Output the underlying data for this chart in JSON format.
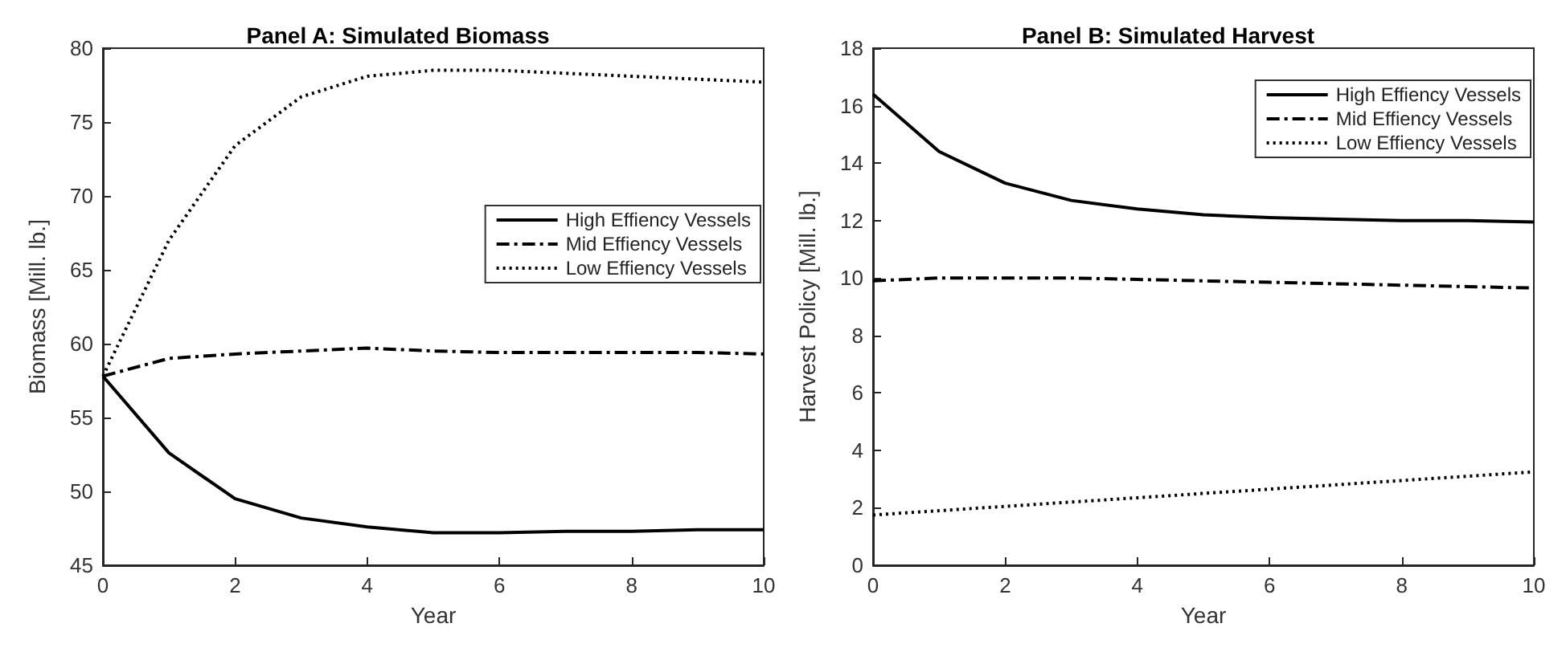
{
  "chart_data": [
    {
      "type": "line",
      "title": "Panel A: Simulated Biomass",
      "xlabel": "Year",
      "ylabel": "Biomass [Mill. lb.]",
      "x": [
        0,
        1,
        2,
        3,
        4,
        5,
        6,
        7,
        8,
        9,
        10
      ],
      "xlim": [
        0,
        10
      ],
      "xticks": [
        0,
        2,
        4,
        6,
        8,
        10
      ],
      "ylim": [
        45,
        80
      ],
      "yticks": [
        45,
        50,
        55,
        60,
        65,
        70,
        75,
        80
      ],
      "grid": false,
      "legend": "right",
      "marker": "none",
      "series": [
        {
          "name": "High Effiency Vessels",
          "color": "#000000",
          "line_style": "solid",
          "values": [
            57.8,
            52.6,
            49.5,
            48.2,
            47.6,
            47.2,
            47.2,
            47.3,
            47.3,
            47.4,
            47.4
          ]
        },
        {
          "name": "Mid Effiency Vessels",
          "color": "#000000",
          "line_style": "dashed",
          "values": [
            57.8,
            59.0,
            59.3,
            59.5,
            59.7,
            59.5,
            59.4,
            59.4,
            59.4,
            59.4,
            59.3
          ]
        },
        {
          "name": "Low Effiency Vessels",
          "color": "#000000",
          "line_style": "dotted",
          "values": [
            57.8,
            67.0,
            73.4,
            76.7,
            78.1,
            78.5,
            78.5,
            78.3,
            78.1,
            77.9,
            77.7
          ]
        }
      ]
    },
    {
      "type": "line",
      "title": "Panel B: Simulated Harvest",
      "xlabel": "Year",
      "ylabel": "Harvest Policy [Mill. lb.]",
      "x": [
        0,
        1,
        2,
        3,
        4,
        5,
        6,
        7,
        8,
        9,
        10
      ],
      "xlim": [
        0,
        10
      ],
      "xticks": [
        0,
        2,
        4,
        6,
        8,
        10
      ],
      "ylim": [
        0,
        18
      ],
      "yticks": [
        0,
        2,
        4,
        6,
        8,
        10,
        12,
        14,
        16,
        18
      ],
      "grid": false,
      "legend": "top right",
      "marker": "none",
      "series": [
        {
          "name": "High Effiency Vessels",
          "color": "#000000",
          "line_style": "solid",
          "values": [
            16.4,
            14.4,
            13.3,
            12.7,
            12.4,
            12.2,
            12.1,
            12.05,
            12.0,
            12.0,
            11.95
          ]
        },
        {
          "name": "Mid Effiency Vessels",
          "color": "#000000",
          "line_style": "dashed",
          "values": [
            9.9,
            10.0,
            10.0,
            10.0,
            9.95,
            9.9,
            9.85,
            9.8,
            9.75,
            9.7,
            9.65
          ]
        },
        {
          "name": "Low Effiency Vessels",
          "color": "#000000",
          "line_style": "dotted",
          "values": [
            1.75,
            1.9,
            2.05,
            2.2,
            2.35,
            2.5,
            2.65,
            2.8,
            2.95,
            3.1,
            3.25
          ]
        }
      ]
    }
  ]
}
